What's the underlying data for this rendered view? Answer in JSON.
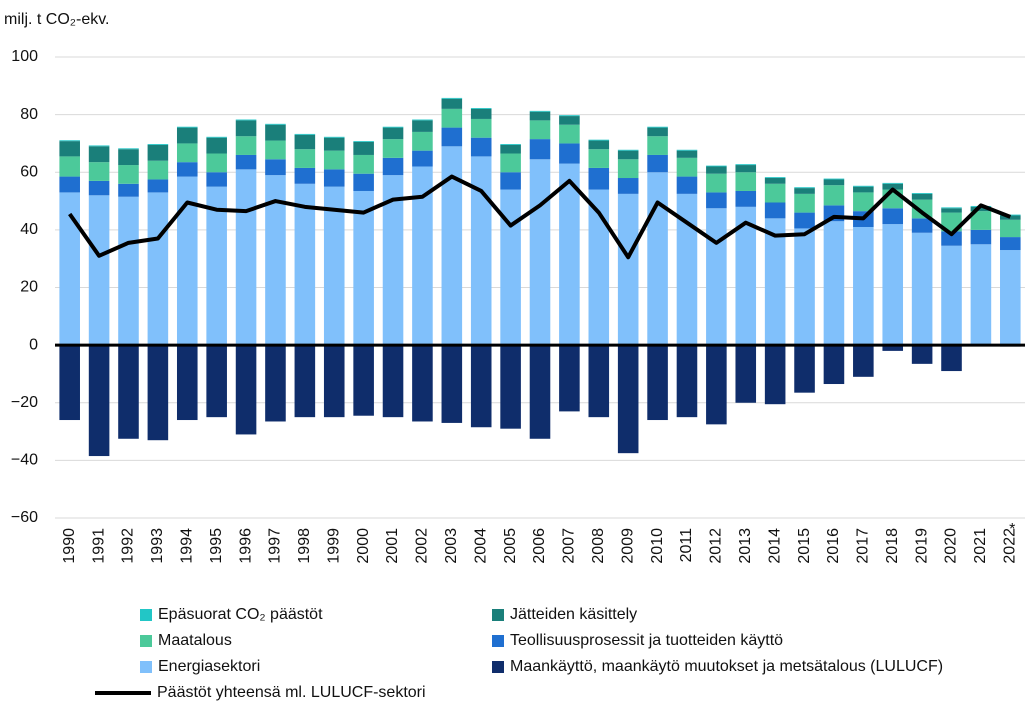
{
  "chart_data": {
    "type": "bar",
    "stacked": true,
    "y_label": "milj. t CO₂-ekv.",
    "annotation": "*",
    "categories": [
      "1990",
      "1991",
      "1992",
      "1993",
      "1994",
      "1995",
      "1996",
      "1997",
      "1998",
      "1999",
      "2000",
      "2001",
      "2002",
      "2003",
      "2004",
      "2005",
      "2006",
      "2007",
      "2008",
      "2009",
      "2010",
      "2011",
      "2012",
      "2013",
      "2014",
      "2015",
      "2016",
      "2017",
      "2018",
      "2019",
      "2020",
      "2021",
      "2022"
    ],
    "ylim": [
      -60,
      100
    ],
    "yticks": [
      {
        "value": -60,
        "label": "−60"
      },
      {
        "value": -40,
        "label": "−40"
      },
      {
        "value": -20,
        "label": "−20"
      },
      0,
      20,
      40,
      60,
      80,
      100
    ],
    "grid": true,
    "series": [
      {
        "name": "Energiasektori",
        "color": "#80c0fb",
        "values": [
          53,
          52,
          51.5,
          53,
          58.5,
          55,
          61,
          59,
          56,
          55,
          53.5,
          59,
          62,
          69,
          65.5,
          54,
          64.5,
          63,
          54,
          52.5,
          60,
          52.5,
          47.5,
          48,
          44,
          40.5,
          43,
          41,
          42,
          39,
          34.5,
          35,
          33
        ]
      },
      {
        "name": "Teollisuusprosessit ja tuotteiden käyttö",
        "color": "#1f6fd0",
        "values": [
          5.5,
          5,
          4.5,
          4.5,
          5,
          5,
          5,
          5.5,
          5.5,
          6,
          6,
          6,
          5.5,
          6.5,
          6.5,
          6,
          7,
          7,
          7.5,
          5.5,
          6,
          6,
          5.5,
          5.5,
          5.5,
          5.5,
          5.5,
          5.5,
          5.5,
          5,
          5,
          5,
          4.5
        ]
      },
      {
        "name": "Maatalous",
        "color": "#4cc99a",
        "values": [
          7,
          6.5,
          6.5,
          6.5,
          6.5,
          6.5,
          6.5,
          6.5,
          6.5,
          6.5,
          6.5,
          6.5,
          6.5,
          6.5,
          6.5,
          6.5,
          6.5,
          6.5,
          6.5,
          6.5,
          6.5,
          6.5,
          6.5,
          6.5,
          6.5,
          6.5,
          7,
          6.5,
          6.5,
          6.5,
          6.5,
          6.5,
          6
        ]
      },
      {
        "name": "Jätteiden käsittely",
        "color": "#1a7f7a",
        "values": [
          5.3,
          5.5,
          5.5,
          5.5,
          5.5,
          5.5,
          5.5,
          5.5,
          5,
          4.5,
          4.5,
          4,
          4,
          3.5,
          3.5,
          3,
          3,
          3,
          3,
          3,
          3,
          2.5,
          2.5,
          2.5,
          2,
          2,
          2,
          2,
          2,
          2,
          1.5,
          1.5,
          1.5
        ]
      },
      {
        "name": "Epäsuorat CO₂ päästöt",
        "color": "#22c6c6",
        "values": [
          0.3,
          0.3,
          0.3,
          0.3,
          0.3,
          0.3,
          0.3,
          0.3,
          0.3,
          0.3,
          0.3,
          0.3,
          0.3,
          0.3,
          0.3,
          0.3,
          0.3,
          0.3,
          0.3,
          0.3,
          0.3,
          0.3,
          0.3,
          0.3,
          0.3,
          0.3,
          0.3,
          0.3,
          0.3,
          0.3,
          0.3,
          0.3,
          0.3
        ]
      },
      {
        "name": "Maankäyttö, maankäytö muutokset ja metsätalous (LULUCF)",
        "color": "#0f2d6b",
        "values": [
          -26,
          -38.5,
          -32.5,
          -33,
          -26,
          -25,
          -31,
          -26.5,
          -25,
          -25,
          -24.5,
          -25,
          -26.5,
          -27,
          -28.5,
          -29,
          -32.5,
          -23,
          -25,
          -37.5,
          -26,
          -25,
          -27.5,
          -20,
          -20.5,
          -16.5,
          -13.5,
          -11,
          -2,
          -6.5,
          -9,
          0,
          -0.5
        ]
      },
      {
        "name": "Päästöt yhteensä ml. LULUCF-sektori",
        "type": "line",
        "color": "#000000",
        "values": [
          45.5,
          31,
          35.5,
          37,
          49.5,
          47,
          46.5,
          50,
          48,
          47,
          46,
          50.5,
          51.5,
          58.5,
          53.5,
          41.5,
          48.5,
          57,
          46,
          30.5,
          49.5,
          42.5,
          35.5,
          42.5,
          38,
          38.5,
          44.5,
          44,
          54,
          46,
          38.5,
          48.5,
          44.5
        ]
      }
    ]
  }
}
